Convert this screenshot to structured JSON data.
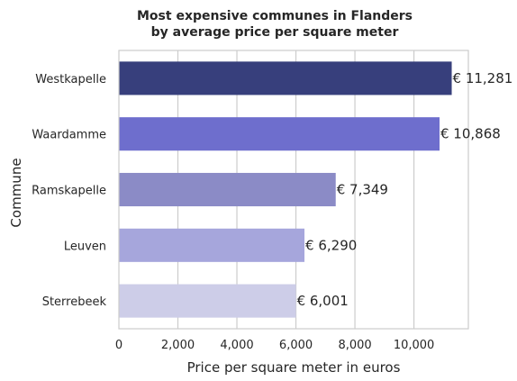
{
  "chart_data": {
    "type": "bar",
    "orientation": "horizontal",
    "title_line1": "Most expensive communes in Flanders",
    "title_line2": "by average price per square meter",
    "xlabel": "Price  per square meter in euros",
    "ylabel": "Commune",
    "categories": [
      "Westkapelle",
      "Waardamme",
      "Ramskapelle",
      "Leuven",
      "Sterrebeek"
    ],
    "values": [
      11281,
      10868,
      7349,
      6290,
      6001
    ],
    "value_labels": [
      "€ 11,281",
      "€ 10,868",
      "€ 7,349",
      "€ 6,290",
      "€ 6,001"
    ],
    "bar_colors": [
      "#373f7c",
      "#6e6ecd",
      "#8b8bc6",
      "#a6a6dc",
      "#cdcde8"
    ],
    "xticks": [
      0,
      2000,
      4000,
      6000,
      8000,
      10000
    ],
    "xtick_labels": [
      "0",
      "2,000",
      "4,000",
      "6,000",
      "8,000",
      "10,000"
    ],
    "xlim": [
      0,
      11845
    ],
    "grid": "vertical",
    "legend": "none"
  }
}
